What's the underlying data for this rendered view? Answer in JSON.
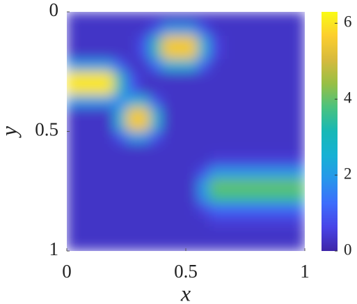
{
  "chart_data": {
    "type": "heatmap",
    "xlabel": "x",
    "ylabel": "y",
    "xlim": [
      0,
      1
    ],
    "ylim": [
      0,
      1
    ],
    "y_reversed": true,
    "xticks": [
      0,
      0.5,
      1
    ],
    "yticks": [
      0,
      0.5,
      1
    ],
    "clim": [
      0,
      6.3
    ],
    "cticks": [
      0,
      2,
      4,
      6
    ],
    "colormap": [
      "#3e26a8",
      "#4844e7",
      "#3d6dfc",
      "#2796eb",
      "#16b1d4",
      "#17b8b6",
      "#4ac27f",
      "#98bf45",
      "#d7ba3d",
      "#fcce2e",
      "#f9fb15"
    ],
    "z": [
      [
        0.3,
        0.3,
        0.3,
        0.3,
        0.3,
        0.3,
        0.3,
        0.3,
        0.3,
        0.3,
        0.3,
        0.3,
        0.3,
        0.3,
        0.3,
        0.3,
        0.3,
        0.3,
        0.3,
        0.3
      ],
      [
        0.3,
        0.3,
        0.3,
        0.3,
        0.3,
        0.3,
        0.3,
        0.8,
        2,
        2,
        2,
        0.8,
        0.3,
        0.3,
        0.3,
        0.3,
        0.3,
        0.3,
        0.3,
        0.3
      ],
      [
        0.3,
        0.3,
        0.3,
        0.3,
        0.3,
        0.3,
        0.8,
        3,
        5.5,
        5.5,
        5.5,
        2.5,
        0.6,
        0.3,
        0.3,
        0.3,
        0.3,
        0.3,
        0.3,
        0.3
      ],
      [
        0.3,
        0.3,
        0.3,
        0.3,
        0.3,
        0.3,
        0.8,
        3,
        5.5,
        5.5,
        5.5,
        2.5,
        0.6,
        0.3,
        0.3,
        0.3,
        0.3,
        0.3,
        0.3,
        0.3
      ],
      [
        2,
        2,
        2,
        2,
        1,
        0.3,
        0.3,
        1.2,
        2.5,
        2.5,
        2.5,
        1,
        0.3,
        0.3,
        0.3,
        0.3,
        0.3,
        0.3,
        0.3,
        0.3
      ],
      [
        6,
        6,
        6,
        6,
        3,
        0.8,
        0.3,
        0.3,
        0.3,
        0.3,
        0.3,
        0.3,
        0.3,
        0.3,
        0.3,
        0.3,
        0.3,
        0.3,
        0.3,
        0.3
      ],
      [
        6,
        6,
        6,
        6,
        3,
        1,
        0.3,
        0.3,
        0.3,
        0.3,
        0.3,
        0.3,
        0.3,
        0.3,
        0.3,
        0.3,
        0.3,
        0.3,
        0.3,
        0.3
      ],
      [
        2,
        2,
        2,
        2,
        1.5,
        2.5,
        2.5,
        0.8,
        0.3,
        0.3,
        0.3,
        0.3,
        0.3,
        0.3,
        0.3,
        0.3,
        0.3,
        0.3,
        0.3,
        0.3
      ],
      [
        0.3,
        0.3,
        0.3,
        0.3,
        2.5,
        5.5,
        5.5,
        2.5,
        0.3,
        0.3,
        0.3,
        0.3,
        0.3,
        0.3,
        0.3,
        0.3,
        0.3,
        0.3,
        0.3,
        0.3
      ],
      [
        0.3,
        0.3,
        0.3,
        0.3,
        2.5,
        5.5,
        5.5,
        2.5,
        0.3,
        0.3,
        0.3,
        0.3,
        0.3,
        0.3,
        0.3,
        0.3,
        0.3,
        0.3,
        0.3,
        0.3
      ],
      [
        0.3,
        0.3,
        0.3,
        0.3,
        0.8,
        2,
        2,
        0.8,
        0.3,
        0.3,
        0.3,
        0.3,
        0.3,
        0.3,
        0.3,
        0.3,
        0.3,
        0.3,
        0.3,
        0.3
      ],
      [
        0.3,
        0.3,
        0.3,
        0.3,
        0.3,
        0.3,
        0.3,
        0.3,
        0.3,
        0.3,
        0.3,
        0.3,
        0.3,
        0.3,
        0.3,
        0.3,
        0.3,
        0.3,
        0.3,
        0.3
      ],
      [
        0.3,
        0.3,
        0.3,
        0.3,
        0.3,
        0.3,
        0.3,
        0.3,
        0.3,
        0.3,
        0.3,
        0.3,
        0.5,
        0.5,
        0.5,
        0.5,
        0.5,
        0.5,
        0.5,
        0.5
      ],
      [
        0.3,
        0.3,
        0.3,
        0.3,
        0.3,
        0.3,
        0.3,
        0.3,
        0.3,
        0.3,
        0.3,
        0.8,
        2,
        2,
        2,
        2,
        2,
        2,
        2,
        2
      ],
      [
        0.3,
        0.3,
        0.3,
        0.3,
        0.3,
        0.3,
        0.3,
        0.3,
        0.3,
        0.3,
        0.3,
        2,
        4,
        4,
        4,
        4,
        4,
        4,
        4,
        4
      ],
      [
        0.3,
        0.3,
        0.3,
        0.3,
        0.3,
        0.3,
        0.3,
        0.3,
        0.3,
        0.3,
        0.3,
        1.8,
        3.6,
        3.6,
        3.6,
        3.6,
        3.6,
        3.6,
        3.6,
        3.6
      ],
      [
        0.3,
        0.3,
        0.3,
        0.3,
        0.3,
        0.3,
        0.3,
        0.3,
        0.3,
        0.3,
        0.3,
        0.6,
        1.2,
        1.2,
        1.2,
        1.2,
        1.2,
        1.2,
        1.2,
        1.2
      ],
      [
        0.3,
        0.3,
        0.3,
        0.3,
        0.3,
        0.3,
        0.3,
        0.3,
        0.3,
        0.3,
        0.3,
        0.3,
        0.5,
        0.5,
        0.5,
        0.5,
        0.5,
        0.5,
        0.5,
        0.5
      ],
      [
        0.3,
        0.3,
        0.3,
        0.3,
        0.3,
        0.3,
        0.3,
        0.3,
        0.3,
        0.3,
        0.3,
        0.3,
        0.3,
        0.3,
        0.3,
        0.3,
        0.3,
        0.3,
        0.3,
        0.3
      ],
      [
        0.3,
        0.3,
        0.3,
        0.3,
        0.3,
        0.3,
        0.3,
        0.3,
        0.3,
        0.3,
        0.3,
        0.3,
        0.3,
        0.3,
        0.3,
        0.3,
        0.3,
        0.3,
        0.3,
        0.3
      ]
    ]
  }
}
